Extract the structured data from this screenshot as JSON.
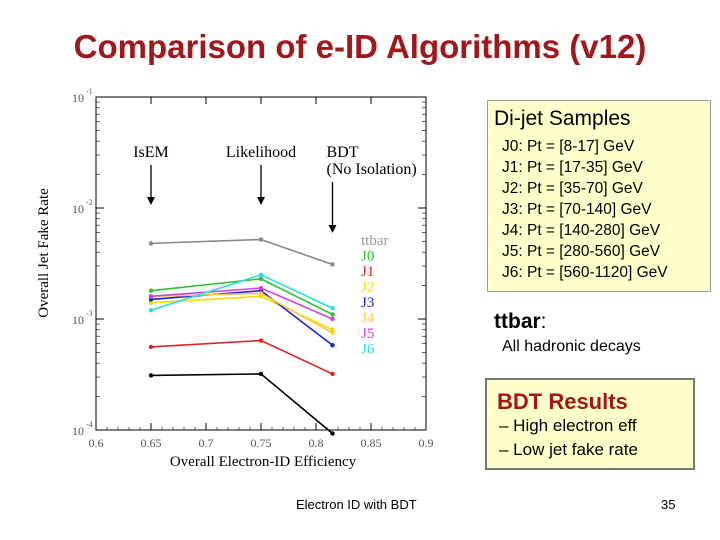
{
  "slide": {
    "title": "Comparison of e-ID Algorithms (v12)",
    "footer_text": "Electron ID with BDT",
    "page_number": "35"
  },
  "samples_box": {
    "heading": "Di-jet Samples",
    "lines": [
      "J0: Pt = [8-17] GeV",
      "J1: Pt = [17-35] GeV",
      "J2: Pt = [35-70] GeV",
      "J3: Pt = [70-140] GeV",
      "J4: Pt = [140-280] GeV",
      "J5: Pt = [280-560] GeV",
      "J6: Pt = [560-1120] GeV"
    ]
  },
  "ttbar_note": {
    "heading": "ttbar",
    "colon": ":",
    "text": "All hadronic decays"
  },
  "bdt_box": {
    "heading": "BDT Results",
    "items": [
      "– High electron eff",
      "– Low jet fake rate"
    ]
  },
  "chart_data": {
    "type": "line",
    "xlabel": "Overall Electron-ID Efficiency",
    "ylabel": "Overall Jet Fake Rate",
    "xlim": [
      0.6,
      0.9
    ],
    "ylim": [
      0.0001,
      0.1
    ],
    "y_scale": "log",
    "x_ticks": [
      "0.6",
      "0.65",
      "0.7",
      "0.75",
      "0.8",
      "0.85",
      "0.9"
    ],
    "y_ticks": [
      {
        "value": 0.1,
        "base": "10",
        "exp": "-1"
      },
      {
        "value": 0.01,
        "base": "10",
        "exp": "-2"
      },
      {
        "value": 0.001,
        "base": "10",
        "exp": "-3"
      },
      {
        "value": 0.0001,
        "base": "10",
        "exp": "-4"
      }
    ],
    "annotations": [
      {
        "text": [
          "IsEM"
        ],
        "x": 0.65
      },
      {
        "text": [
          "Likelihood"
        ],
        "x": 0.75
      },
      {
        "text": [
          "BDT",
          "(No Isolation)"
        ],
        "x": 0.815
      }
    ],
    "legend": [
      "ttbar",
      "J0",
      "J1",
      "J2",
      "J3",
      "J4",
      "J5",
      "J6"
    ],
    "series": [
      {
        "name": "ttbar",
        "color": "#888888",
        "x": [
          0.65,
          0.75,
          0.815
        ],
        "y": [
          0.0048,
          0.0052,
          0.0031
        ]
      },
      {
        "name": "J0",
        "color": "#2fbf2f",
        "x": [
          0.65,
          0.75,
          0.815
        ],
        "y": [
          0.0018,
          0.0023,
          0.0011
        ]
      },
      {
        "name": "J1",
        "color": "#e02020",
        "x": [
          0.65,
          0.75,
          0.815
        ],
        "y": [
          0.00056,
          0.00064,
          0.00032
        ]
      },
      {
        "name": "J2",
        "color": "#f0e000",
        "x": [
          0.65,
          0.75,
          0.815
        ],
        "y": [
          0.0014,
          0.0016,
          0.0008
        ]
      },
      {
        "name": "J3",
        "color": "#2222cc",
        "x": [
          0.65,
          0.75,
          0.815
        ],
        "y": [
          0.0015,
          0.0018,
          0.00058
        ]
      },
      {
        "name": "J4",
        "color": "#ffc84a",
        "x": [
          0.65,
          0.75,
          0.815
        ],
        "y": [
          0.0016,
          0.0017,
          0.00075
        ]
      },
      {
        "name": "J5",
        "color": "#d040e0",
        "x": [
          0.65,
          0.75,
          0.815
        ],
        "y": [
          0.0016,
          0.0019,
          0.001
        ]
      },
      {
        "name": "J6",
        "color": "#28e0e0",
        "x": [
          0.65,
          0.75,
          0.815
        ],
        "y": [
          0.0012,
          0.0025,
          0.00125
        ]
      },
      {
        "name": "",
        "color": "#000000",
        "x": [
          0.65,
          0.75,
          0.815
        ],
        "y": [
          0.00031,
          0.00032,
          9.3e-05
        ]
      }
    ]
  }
}
